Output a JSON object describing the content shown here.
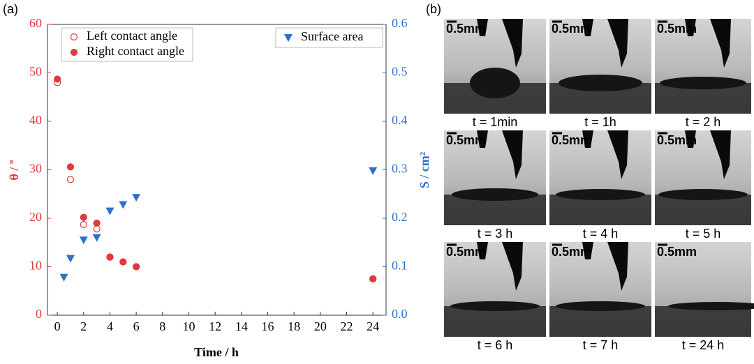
{
  "panel_a_label": "(a)",
  "chart_data": {
    "type": "scatter",
    "xlabel": "Time / h",
    "ylabel": "θ / º",
    "y2label": "S / cm²",
    "xlim": [
      -0.75,
      25
    ],
    "xticks": [
      0,
      2,
      4,
      6,
      8,
      10,
      12,
      14,
      16,
      18,
      20,
      22,
      24
    ],
    "ylim": [
      0,
      60
    ],
    "yticks": [
      0,
      10,
      20,
      30,
      40,
      50,
      60
    ],
    "y2lim": [
      0,
      0.6
    ],
    "y2ticks": [
      {
        "value": 0,
        "label": "0.0"
      },
      0.1,
      0.2,
      0.3,
      0.4,
      0.5,
      0.6
    ],
    "legend": "upper left",
    "legend_y2": "upper right",
    "series": [
      {
        "name": "Left contact angle",
        "color": "#e0393e",
        "marker": "open-circle",
        "x": [
          0,
          1,
          2,
          3,
          4,
          5,
          6,
          24
        ],
        "values": [
          48,
          28,
          18.7,
          17.8,
          12,
          11,
          10,
          7.5
        ]
      },
      {
        "name": "Right contact angle",
        "color": "#e0393e",
        "marker": "circle",
        "x": [
          0,
          1,
          2,
          3,
          4,
          5,
          6,
          24
        ],
        "values": [
          48.7,
          30.6,
          20.2,
          19,
          12,
          11,
          10,
          7.5
        ]
      },
      {
        "name": "Surface area",
        "color": "#2c72c8",
        "marker": "triangle-down",
        "axis": "y2",
        "x": [
          0.5,
          1,
          2,
          3,
          4,
          5,
          6,
          24
        ],
        "values": [
          0.078,
          0.117,
          0.155,
          0.16,
          0.215,
          0.228,
          0.243,
          0.298
        ]
      }
    ]
  },
  "panel_b": {
    "label": "(b)",
    "frames": [
      {
        "time": "t = 1min",
        "scale": "0.5mm"
      },
      {
        "time": "t = 1h",
        "scale": "0.5mm"
      },
      {
        "time": "t = 2 h",
        "scale": "0.5mm"
      },
      {
        "time": "t = 3 h",
        "scale": "0.5mm"
      },
      {
        "time": "t = 4 h",
        "scale": "0.5mm"
      },
      {
        "time": "t = 5 h",
        "scale": "0.5mm"
      },
      {
        "time": "t = 6 h",
        "scale": "0.5mm"
      },
      {
        "time": "t = 7 h",
        "scale": "0.5mm"
      },
      {
        "time": "t = 24 h",
        "scale": "0.5mm"
      }
    ]
  }
}
